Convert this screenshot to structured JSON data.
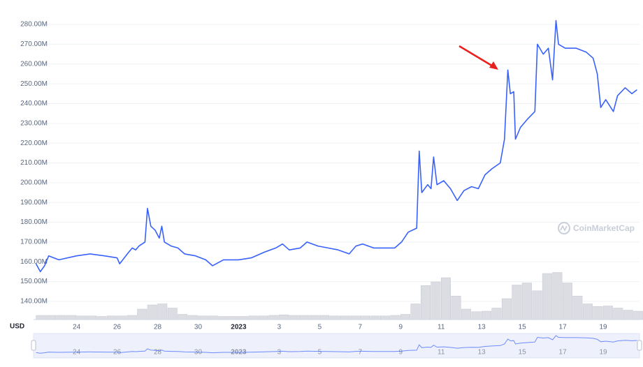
{
  "chart_data": {
    "type": "line",
    "unit_label": "USD",
    "watermark": "CoinMarketCap",
    "x": [
      "2022-12-22T00:00",
      "2022-12-22T05:00",
      "2022-12-22T10:00",
      "2022-12-22T15:00",
      "2022-12-23T03:00",
      "2022-12-24T00:00",
      "2022-12-24T16:00",
      "2022-12-25T09:00",
      "2022-12-26T00:00",
      "2022-12-26T03:00",
      "2022-12-26T14:00",
      "2022-12-26T18:00",
      "2022-12-26T22:00",
      "2022-12-27T02:00",
      "2022-12-27T09:00",
      "2022-12-27T12:00",
      "2022-12-27T16:00",
      "2022-12-27T21:00",
      "2022-12-28T02:00",
      "2022-12-28T05:00",
      "2022-12-28T08:00",
      "2022-12-28T16:00",
      "2022-12-29T00:00",
      "2022-12-29T08:00",
      "2022-12-29T21:00",
      "2022-12-30T09:00",
      "2022-12-30T17:00",
      "2022-12-31T06:00",
      "2023-01-01T00:00",
      "2023-01-01T15:00",
      "2023-01-02T07:00",
      "2023-01-02T20:00",
      "2023-01-03T04:00",
      "2023-01-03T12:00",
      "2023-01-04T01:00",
      "2023-01-04T09:00",
      "2023-01-04T22:00",
      "2023-01-05T10:00",
      "2023-01-05T22:00",
      "2023-01-06T11:00",
      "2023-01-06T19:00",
      "2023-01-07T03:00",
      "2023-01-07T16:00",
      "2023-01-08T04:00",
      "2023-01-08T17:00",
      "2023-01-09T01:00",
      "2023-01-09T09:00",
      "2023-01-09T19:00",
      "2023-01-09T22:00",
      "2023-01-10T01:00",
      "2023-01-10T08:00",
      "2023-01-10T12:00",
      "2023-01-10T15:00",
      "2023-01-10T19:00",
      "2023-01-11T03:00",
      "2023-01-11T11:00",
      "2023-01-11T19:00",
      "2023-01-12T03:00",
      "2023-01-12T12:00",
      "2023-01-12T20:00",
      "2023-01-13T04:00",
      "2023-01-13T12:00",
      "2023-01-13T22:00",
      "2023-01-14T03:00",
      "2023-01-14T07:00",
      "2023-01-14T10:00",
      "2023-01-14T14:00",
      "2023-01-14T16:00",
      "2023-01-14T22:00",
      "2023-01-15T06:00",
      "2023-01-15T15:00",
      "2023-01-15T18:00",
      "2023-01-16T01:00",
      "2023-01-16T07:00",
      "2023-01-16T12:00",
      "2023-01-16T16:00",
      "2023-01-16T19:00",
      "2023-01-17T03:00",
      "2023-01-17T16:00",
      "2023-01-18T04:00",
      "2023-01-18T12:00",
      "2023-01-18T17:00",
      "2023-01-18T21:00",
      "2023-01-19T03:00",
      "2023-01-19T12:00",
      "2023-01-19T17:00",
      "2023-01-20T02:00",
      "2023-01-20T10:00",
      "2023-01-20T16:00"
    ],
    "series": [
      {
        "color": "#3861fb",
        "values": [
          159000000.0,
          155000000.0,
          158000000.0,
          163000000.0,
          161000000.0,
          163000000.0,
          164000000.0,
          163000000.0,
          162000000.0,
          159000000.0,
          165000000.0,
          167000000.0,
          166000000.0,
          168000000.0,
          170000000.0,
          187000000.0,
          178000000.0,
          176000000.0,
          172000000.0,
          178000000.0,
          170000000.0,
          168000000.0,
          167000000.0,
          164000000.0,
          163000000.0,
          161000000.0,
          158000000.0,
          161000000.0,
          161000000.0,
          162000000.0,
          165000000.0,
          167000000.0,
          169000000.0,
          166000000.0,
          167000000.0,
          170000000.0,
          168000000.0,
          167000000.0,
          166000000.0,
          164000000.0,
          168000000.0,
          169000000.0,
          167000000.0,
          167000000.0,
          167000000.0,
          170000000.0,
          175000000.0,
          177000000.0,
          216000000.0,
          195000000.0,
          199000000.0,
          197000000.0,
          213000000.0,
          199000000.0,
          201000000.0,
          197000000.0,
          191000000.0,
          196000000.0,
          198000000.0,
          197000000.0,
          204000000.0,
          207000000.0,
          210000000.0,
          222000000.0,
          257000000.0,
          245000000.0,
          246000000.0,
          222000000.0,
          228000000.0,
          232000000.0,
          236000000.0,
          270000000.0,
          265000000.0,
          268000000.0,
          252000000.0,
          282000000.0,
          270000000.0,
          268000000.0,
          268000000.0,
          266000000.0,
          263000000.0,
          255000000.0,
          238000000.0,
          242000000.0,
          236000000.0,
          244000000.0,
          248000000.0,
          245000000.0,
          247000000.0
        ]
      }
    ],
    "volume": {
      "color": "#dcdde3",
      "x": [
        "2022-12-22T00:00",
        "2022-12-22T12:00",
        "2022-12-23T00:00",
        "2022-12-23T12:00",
        "2022-12-24T00:00",
        "2022-12-24T12:00",
        "2022-12-25T00:00",
        "2022-12-25T12:00",
        "2022-12-26T00:00",
        "2022-12-26T12:00",
        "2022-12-27T00:00",
        "2022-12-27T12:00",
        "2022-12-28T00:00",
        "2022-12-28T12:00",
        "2022-12-29T00:00",
        "2022-12-29T12:00",
        "2022-12-30T00:00",
        "2022-12-30T12:00",
        "2022-12-31T00:00",
        "2022-12-31T12:00",
        "2023-01-01T00:00",
        "2023-01-01T12:00",
        "2023-01-02T00:00",
        "2023-01-02T12:00",
        "2023-01-03T00:00",
        "2023-01-03T12:00",
        "2023-01-04T00:00",
        "2023-01-04T12:00",
        "2023-01-05T00:00",
        "2023-01-05T12:00",
        "2023-01-06T00:00",
        "2023-01-06T12:00",
        "2023-01-07T00:00",
        "2023-01-07T12:00",
        "2023-01-08T00:00",
        "2023-01-08T12:00",
        "2023-01-09T00:00",
        "2023-01-09T12:00",
        "2023-01-10T00:00",
        "2023-01-10T12:00",
        "2023-01-11T00:00",
        "2023-01-11T12:00",
        "2023-01-12T00:00",
        "2023-01-12T12:00",
        "2023-01-13T00:00",
        "2023-01-13T12:00",
        "2023-01-14T00:00",
        "2023-01-14T12:00",
        "2023-01-15T00:00",
        "2023-01-15T12:00",
        "2023-01-16T00:00",
        "2023-01-16T12:00",
        "2023-01-17T00:00",
        "2023-01-17T12:00",
        "2023-01-18T00:00",
        "2023-01-18T12:00",
        "2023-01-19T00:00",
        "2023-01-19T12:00",
        "2023-01-20T00:00",
        "2023-01-20T12:00"
      ],
      "values": [
        8,
        8,
        8,
        8,
        7,
        7,
        6,
        7,
        7,
        8,
        20,
        28,
        30,
        22,
        10,
        8,
        7,
        7,
        6,
        6,
        6,
        7,
        7,
        8,
        9,
        8,
        8,
        8,
        8,
        7,
        7,
        7,
        7,
        7,
        7,
        8,
        10,
        30,
        65,
        72,
        80,
        45,
        20,
        15,
        16,
        22,
        40,
        66,
        70,
        55,
        88,
        90,
        70,
        45,
        30,
        25,
        26,
        22,
        18,
        16
      ],
      "y2lim": [
        0,
        100
      ]
    },
    "xlim": [
      "2022-12-21T21:00",
      "2023-01-20T19:00"
    ],
    "xticks": [
      {
        "value": "2022-12-24",
        "label": "24"
      },
      {
        "value": "2022-12-26",
        "label": "26"
      },
      {
        "value": "2022-12-28",
        "label": "28"
      },
      {
        "value": "2022-12-30",
        "label": "30"
      },
      {
        "value": "2023-01-01",
        "label": "2023"
      },
      {
        "value": "2023-01-03",
        "label": "3"
      },
      {
        "value": "2023-01-05",
        "label": "5"
      },
      {
        "value": "2023-01-07",
        "label": "7"
      },
      {
        "value": "2023-01-09",
        "label": "9"
      },
      {
        "value": "2023-01-11",
        "label": "11"
      },
      {
        "value": "2023-01-13",
        "label": "13"
      },
      {
        "value": "2023-01-15",
        "label": "15"
      },
      {
        "value": "2023-01-17",
        "label": "17"
      },
      {
        "value": "2023-01-19",
        "label": "19"
      }
    ],
    "ylim": [
      130800000,
      282500000
    ],
    "yticks": [
      {
        "value": 140000000,
        "label": "140.00M"
      },
      {
        "value": 150000000,
        "label": "150.00M"
      },
      {
        "value": 160000000,
        "label": "160.00M"
      },
      {
        "value": 170000000,
        "label": "170.00M"
      },
      {
        "value": 180000000,
        "label": "180.00M"
      },
      {
        "value": 190000000,
        "label": "190.00M"
      },
      {
        "value": 200000000,
        "label": "200.00M"
      },
      {
        "value": 210000000,
        "label": "210.00M"
      },
      {
        "value": 220000000,
        "label": "220.00M"
      },
      {
        "value": 230000000,
        "label": "230.00M"
      },
      {
        "value": 240000000,
        "label": "240.00M"
      },
      {
        "value": 250000000,
        "label": "250.00M"
      },
      {
        "value": 260000000,
        "label": "260.00M"
      },
      {
        "value": 270000000,
        "label": "270.00M"
      },
      {
        "value": 280000000,
        "label": "280.00M"
      }
    ],
    "grid": true
  }
}
